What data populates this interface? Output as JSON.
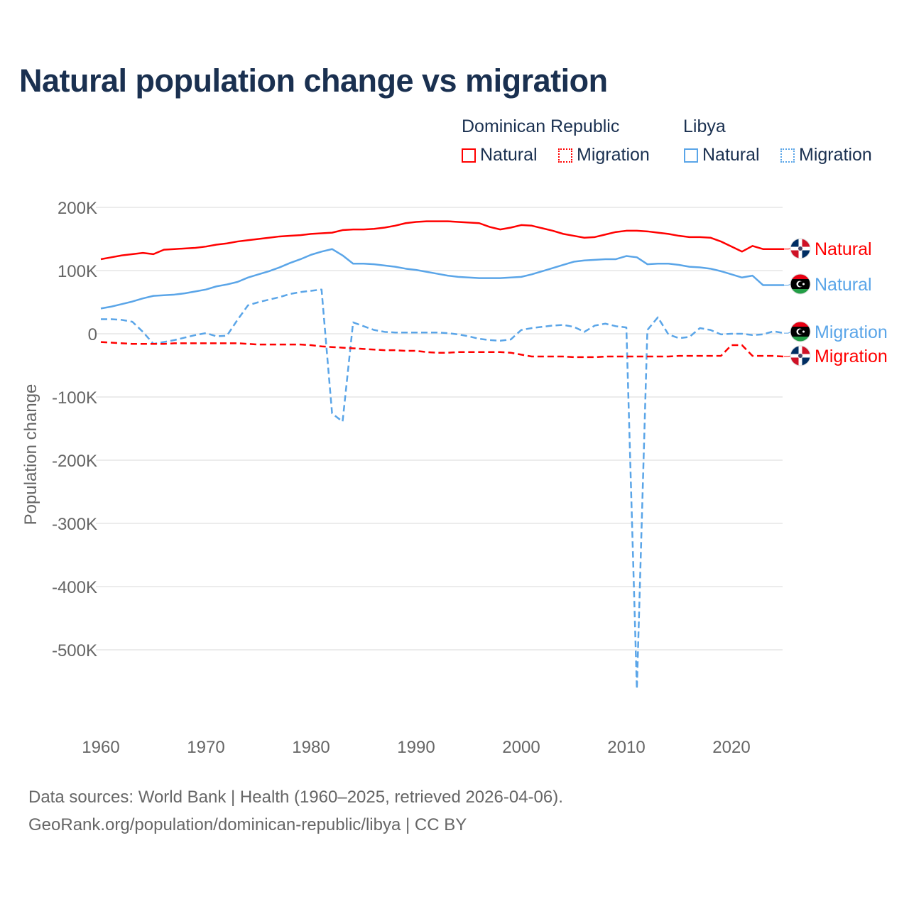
{
  "title": "Natural population change vs migration",
  "legend": {
    "groups": [
      {
        "name": "Dominican Republic",
        "items": [
          "Natural",
          "Migration"
        ],
        "color": "#ff0000"
      },
      {
        "name": "Libya",
        "items": [
          "Natural",
          "Migration"
        ],
        "color": "#5aa5e8"
      }
    ]
  },
  "footer": {
    "line1": "Data sources: World Bank | Health (1960–2025, retrieved 2026-04-06).",
    "line2": "GeoRank.org/population/dominican-republic/libya | CC BY"
  },
  "chart_data": {
    "type": "line",
    "title": "Natural population change vs migration",
    "xlabel": "",
    "ylabel": "Population change",
    "xlim": [
      1960,
      2025
    ],
    "ylim": [
      -600000,
      200000
    ],
    "x_ticks": [
      1960,
      1970,
      1980,
      1990,
      2000,
      2010,
      2020
    ],
    "x_tick_labels": [
      "1960",
      "1970",
      "1980",
      "1990",
      "2000",
      "2010",
      "2020"
    ],
    "y_ticks": [
      200000,
      100000,
      0,
      -100000,
      -200000,
      -300000,
      -400000,
      -500000
    ],
    "y_tick_labels": [
      "200K",
      "100K",
      "0",
      "-100K",
      "-200K",
      "-300K",
      "-400K",
      "-500K"
    ],
    "grid": true,
    "legend_position": "top-right",
    "x_start": 1960,
    "units": "thousands",
    "series": [
      {
        "name": "Dominican Republic Natural",
        "label": "Natural",
        "color": "#ff0000",
        "dash": "solid",
        "flag": "dominican-republic",
        "values": [
          118,
          121,
          124,
          126,
          128,
          126,
          133,
          134,
          135,
          136,
          138,
          141,
          143,
          146,
          148,
          150,
          152,
          154,
          155,
          156,
          158,
          159,
          160,
          164,
          165,
          165,
          166,
          168,
          171,
          175,
          177,
          178,
          178,
          178,
          177,
          176,
          175,
          169,
          165,
          168,
          172,
          171,
          167,
          163,
          158,
          155,
          152,
          153,
          157,
          161,
          163,
          163,
          162,
          160,
          158,
          155,
          153,
          153,
          152,
          146,
          138,
          130,
          139,
          134,
          134,
          134
        ]
      },
      {
        "name": "Libya Natural",
        "label": "Natural",
        "color": "#5aa5e8",
        "dash": "solid",
        "flag": "libya",
        "values": [
          40,
          43,
          47,
          51,
          56,
          60,
          61,
          62,
          64,
          67,
          70,
          75,
          78,
          82,
          89,
          94,
          99,
          105,
          112,
          118,
          125,
          130,
          134,
          124,
          111,
          111,
          110,
          108,
          106,
          103,
          101,
          98,
          95,
          92,
          90,
          89,
          88,
          88,
          88,
          89,
          90,
          94,
          99,
          104,
          109,
          114,
          116,
          117,
          118,
          118,
          123,
          121,
          110,
          111,
          111,
          109,
          106,
          105,
          103,
          99,
          94,
          89,
          92,
          77,
          77,
          77
        ]
      },
      {
        "name": "Libya Migration",
        "label": "Migration",
        "color": "#5aa5e8",
        "dash": "dashed",
        "flag": "libya",
        "values": [
          23,
          23,
          22,
          19,
          3,
          -16,
          -13,
          -10,
          -6,
          -2,
          1,
          -4,
          -3,
          22,
          45,
          50,
          54,
          58,
          63,
          66,
          68,
          70,
          -126,
          -139,
          18,
          12,
          6,
          3,
          2,
          2,
          2,
          2,
          2,
          1,
          -1,
          -4,
          -8,
          -10,
          -11,
          -9,
          6,
          9,
          11,
          13,
          14,
          11,
          3,
          13,
          16,
          12,
          10,
          -562,
          6,
          26,
          -1,
          -7,
          -5,
          9,
          6,
          -1,
          0,
          0,
          -2,
          -1,
          4,
          1
        ]
      },
      {
        "name": "Dominican Republic Migration",
        "label": "Migration",
        "color": "#ff0000",
        "dash": "dashed",
        "flag": "dominican-republic",
        "values": [
          -13,
          -14,
          -15,
          -16,
          -16,
          -16,
          -16,
          -15,
          -15,
          -15,
          -15,
          -15,
          -15,
          -15,
          -16,
          -17,
          -17,
          -17,
          -17,
          -17,
          -18,
          -20,
          -21,
          -22,
          -23,
          -24,
          -25,
          -26,
          -26,
          -27,
          -27,
          -29,
          -30,
          -30,
          -29,
          -29,
          -29,
          -29,
          -29,
          -30,
          -33,
          -36,
          -36,
          -36,
          -36,
          -37,
          -37,
          -37,
          -36,
          -36,
          -36,
          -36,
          -36,
          -36,
          -36,
          -35,
          -35,
          -35,
          -35,
          -35,
          -18,
          -18,
          -35,
          -35,
          -35,
          -36
        ]
      }
    ]
  }
}
